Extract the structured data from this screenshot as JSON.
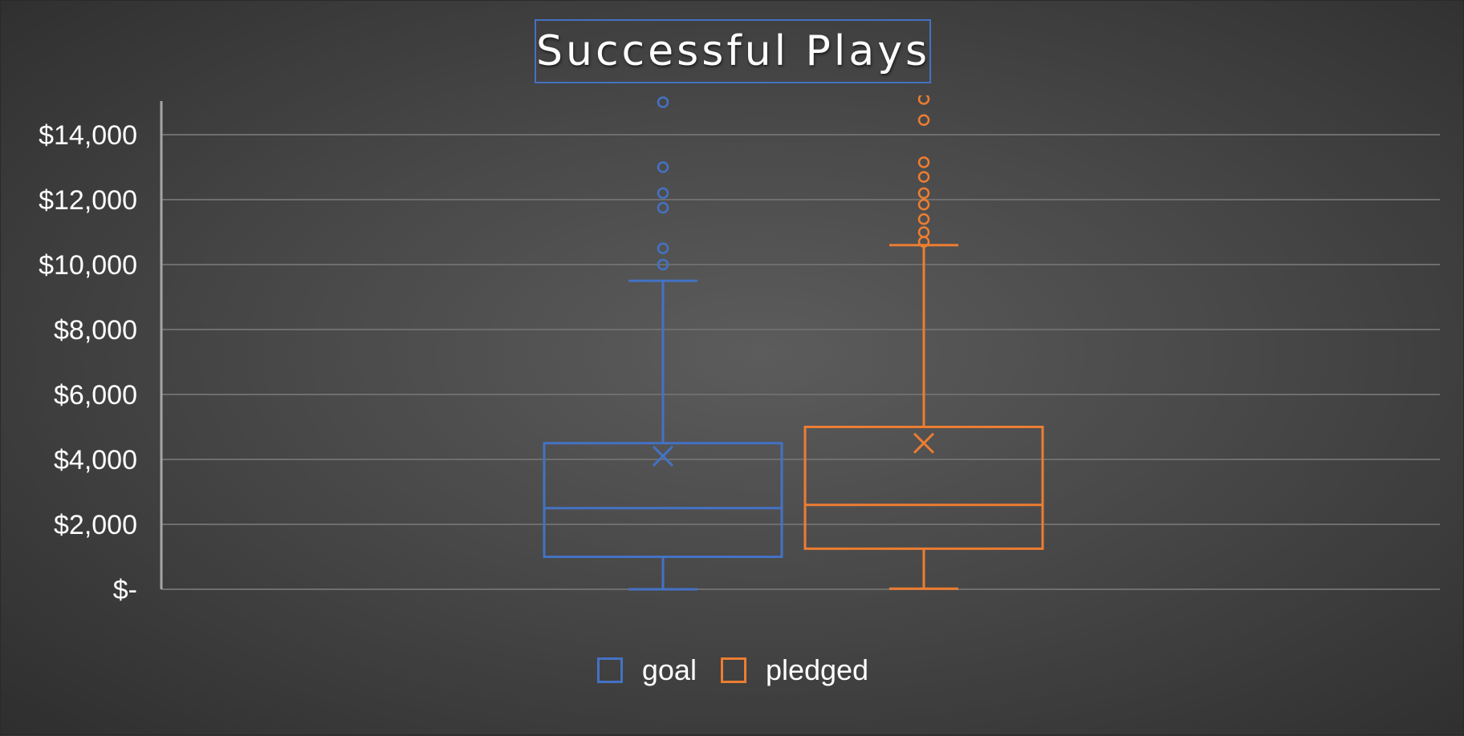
{
  "chart_data": {
    "type": "box",
    "title": "Successful Plays",
    "xlabel": "",
    "ylabel": "",
    "ylim": [
      0,
      14000
    ],
    "y_ticks": [
      0,
      2000,
      4000,
      6000,
      8000,
      10000,
      12000,
      14000
    ],
    "y_tick_labels": [
      "$-",
      "$2,000",
      "$4,000",
      "$6,000",
      "$8,000",
      "$10,000",
      "$12,000",
      "$14,000"
    ],
    "grid": true,
    "legend_position": "bottom",
    "series": [
      {
        "name": "goal",
        "color": "#4472c4",
        "min": 0,
        "q1": 1000,
        "median": 2500,
        "q3": 4500,
        "max": 9500,
        "mean": 4100,
        "outliers": [
          10000,
          10500,
          11750,
          12200,
          13000,
          15000
        ]
      },
      {
        "name": "pledged",
        "color": "#ed7d31",
        "min": 20,
        "q1": 1250,
        "median": 2600,
        "q3": 5000,
        "max": 10600,
        "mean": 4500,
        "outliers": [
          10700,
          11000,
          11400,
          11850,
          12200,
          12700,
          13150,
          14450,
          15100
        ]
      }
    ]
  }
}
